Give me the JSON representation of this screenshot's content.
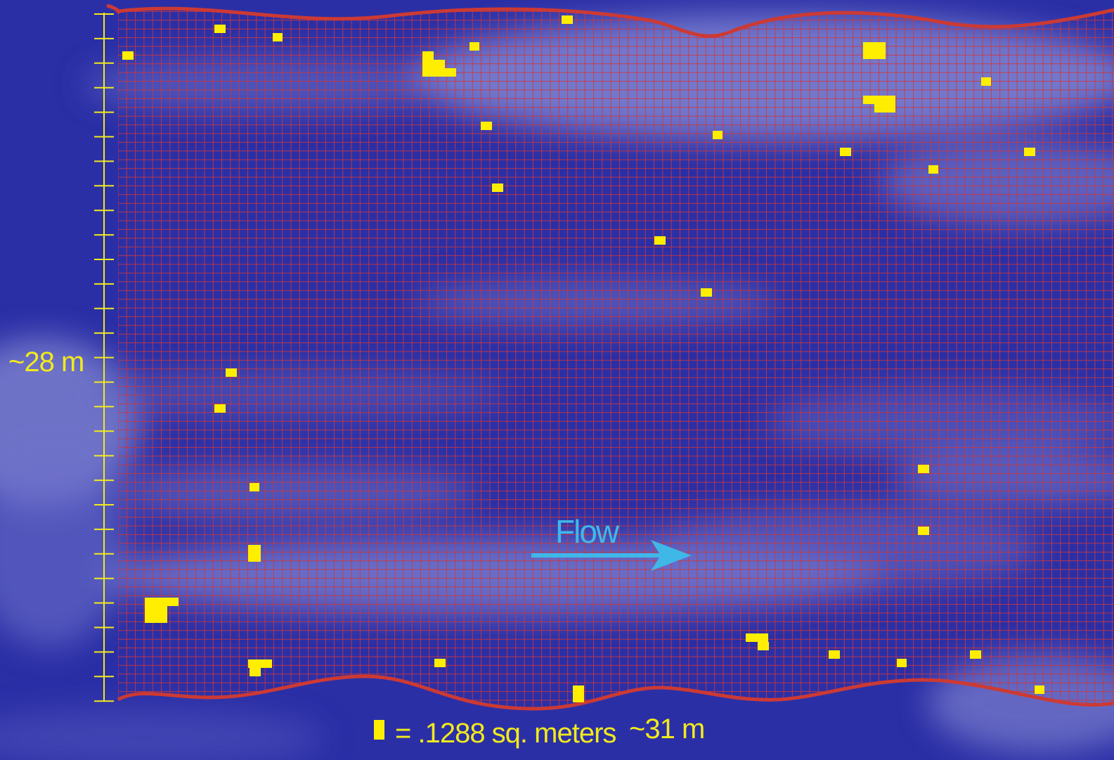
{
  "labels": {
    "vertical_scale": "~28 m",
    "horizontal_scale": "~31 m",
    "legend_text": "= .1288 sq. meters",
    "flow": "Flow"
  },
  "colors": {
    "water_dark": "#2b2fa6",
    "water_light": "#8a8fd6",
    "grid_line": "#d0383a",
    "boundary": "#cc3a34",
    "marker": "#ffee00",
    "scale_bar": "#f2ea1c",
    "flow_arrow": "#3fb8e8"
  },
  "icons": {
    "legend_marker": "yellow-square-icon",
    "flow_arrow": "right-arrow-icon"
  }
}
